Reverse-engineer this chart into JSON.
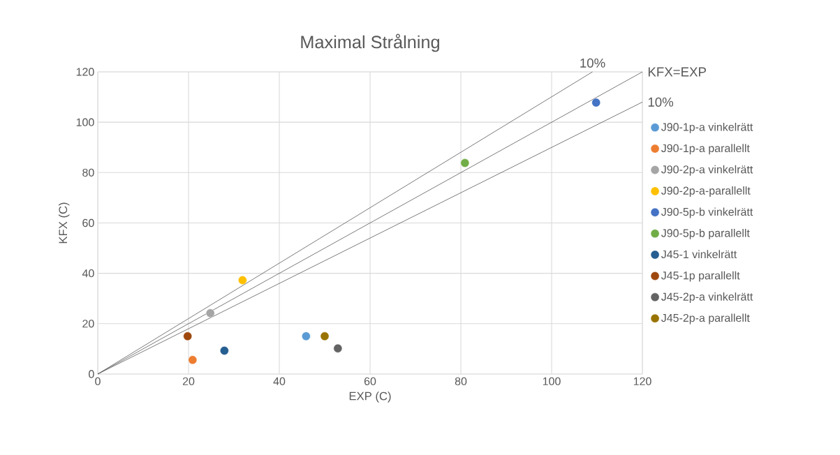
{
  "chart_data": {
    "type": "scatter",
    "title": "Maximal Strålning",
    "xlabel": "EXP (C)",
    "ylabel": "KFX (C)",
    "xlim": [
      0,
      120
    ],
    "ylim": [
      0,
      120
    ],
    "xticks": [
      0,
      20,
      40,
      60,
      80,
      100,
      120
    ],
    "yticks": [
      0,
      20,
      40,
      60,
      80,
      100,
      120
    ],
    "grid": true,
    "legend": "right",
    "series": [
      {
        "name": "J90-1p-a vinkelrätt",
        "color": "#5b9bd5",
        "marker": "circle",
        "x": [
          45.9
        ],
        "values": [
          15.0
        ]
      },
      {
        "name": "J90-1p-a parallellt",
        "color": "#ed7d31",
        "marker": "circle",
        "x": [
          20.9
        ],
        "values": [
          5.6
        ]
      },
      {
        "name": "J90-2p-a vinkelrätt",
        "color": "#a5a5a5",
        "marker": "circle",
        "x": [
          24.8
        ],
        "values": [
          24.2
        ]
      },
      {
        "name": "J90-2p-a-parallellt",
        "color": "#ffc000",
        "marker": "circle",
        "x": [
          31.9
        ],
        "values": [
          37.3
        ]
      },
      {
        "name": "J90-5p-b vinkelrätt",
        "color": "#4472c4",
        "marker": "circle",
        "x": [
          109.8
        ],
        "values": [
          107.8
        ]
      },
      {
        "name": "J90-5p-b parallellt",
        "color": "#70ad47",
        "marker": "circle",
        "x": [
          80.9
        ],
        "values": [
          83.8
        ]
      },
      {
        "name": "J45-1 vinkelrätt",
        "color": "#255e91",
        "marker": "circle",
        "x": [
          27.9
        ],
        "values": [
          9.3
        ]
      },
      {
        "name": "J45-1p parallellt",
        "color": "#9e480e",
        "marker": "circle",
        "x": [
          19.8
        ],
        "values": [
          15.0
        ]
      },
      {
        "name": "J45-2p-a vinkelrätt",
        "color": "#636363",
        "marker": "circle",
        "x": [
          52.9
        ],
        "values": [
          10.2
        ]
      },
      {
        "name": "J45-2p-a parallellt",
        "color": "#997300",
        "marker": "circle",
        "x": [
          50.0
        ],
        "values": [
          15.0
        ]
      },
      {
        "type": "line",
        "color": "#595959",
        "line_style": "solid",
        "marker": "none",
        "x": [
          0,
          109
        ],
        "values": [
          0,
          120
        ]
      },
      {
        "type": "line",
        "color": "#595959",
        "line_style": "solid",
        "marker": "none",
        "x": [
          0,
          120
        ],
        "values": [
          0,
          120
        ]
      },
      {
        "type": "line",
        "color": "#595959",
        "line_style": "solid",
        "marker": "none",
        "x": [
          0,
          120
        ],
        "values": [
          0,
          108
        ]
      }
    ],
    "annotations": [
      "10%",
      "KFX=EXP",
      "10%"
    ]
  }
}
